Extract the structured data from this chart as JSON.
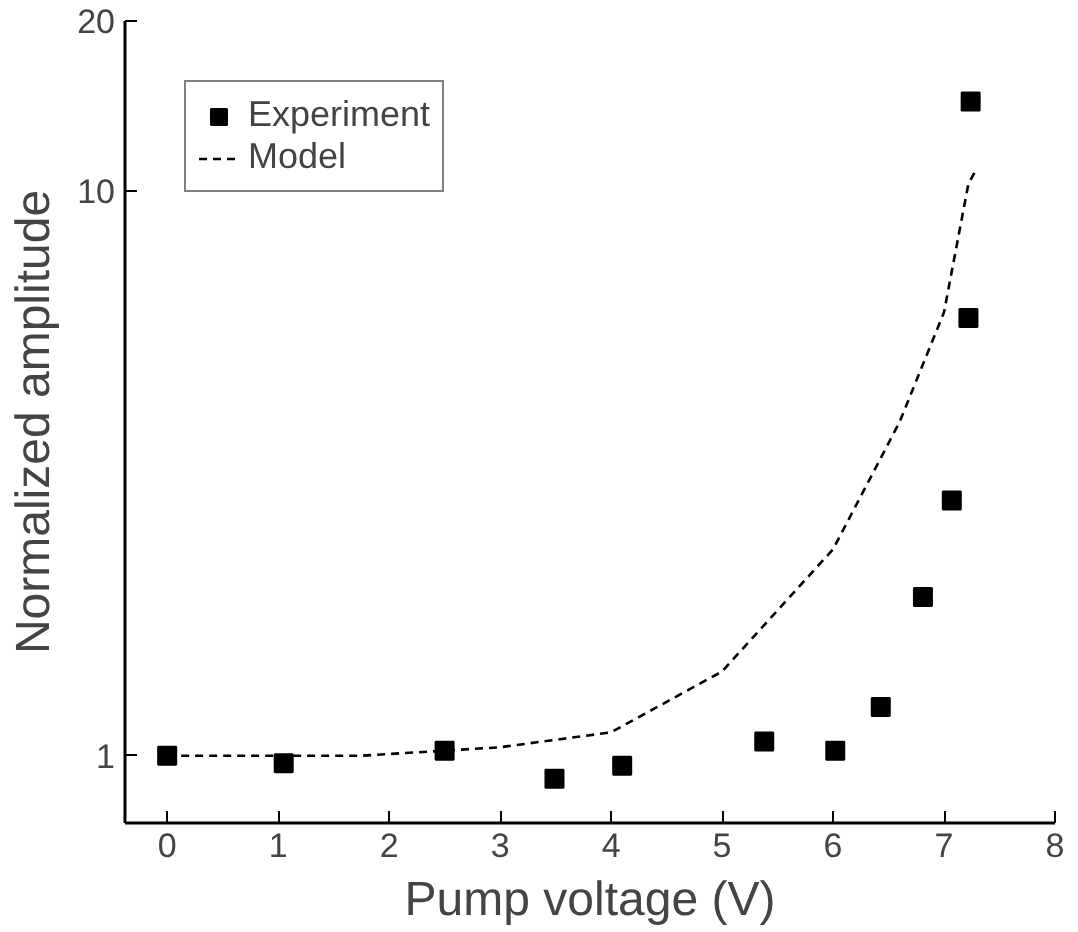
{
  "chart_data": {
    "type": "scatter",
    "xlabel": "Pump voltage (V)",
    "ylabel": "Normalized amplitude",
    "log": "y",
    "grid": false,
    "legend": "top left",
    "xlim": [
      -0.38,
      8
    ],
    "ylim": [
      0.76,
      20
    ],
    "xticks": [
      0,
      1,
      2,
      3,
      4,
      5,
      6,
      7,
      8
    ],
    "yticks": [
      1,
      10,
      20
    ],
    "series": [
      {
        "name": "Experiment",
        "marker": "square",
        "color": "#000000",
        "x": [
          0,
          1.05,
          2.5,
          3.49,
          4.1,
          5.38,
          6.02,
          6.43,
          6.81,
          7.07,
          7.22,
          7.24
        ],
        "values": [
          1.0,
          0.97,
          1.02,
          0.91,
          0.96,
          1.06,
          1.02,
          1.22,
          1.91,
          2.83,
          5.96,
          14.4
        ]
      },
      {
        "name": "Model",
        "type": "line",
        "line_style": "dashed",
        "color": "#000000",
        "x": [
          0,
          1.75,
          3,
          4,
          5,
          6,
          6.6,
          7,
          7.22,
          7.3
        ],
        "values": [
          1.0,
          1.0,
          1.035,
          1.1,
          1.41,
          2.32,
          3.9,
          6.1,
          10.3,
          11.0
        ]
      }
    ]
  }
}
